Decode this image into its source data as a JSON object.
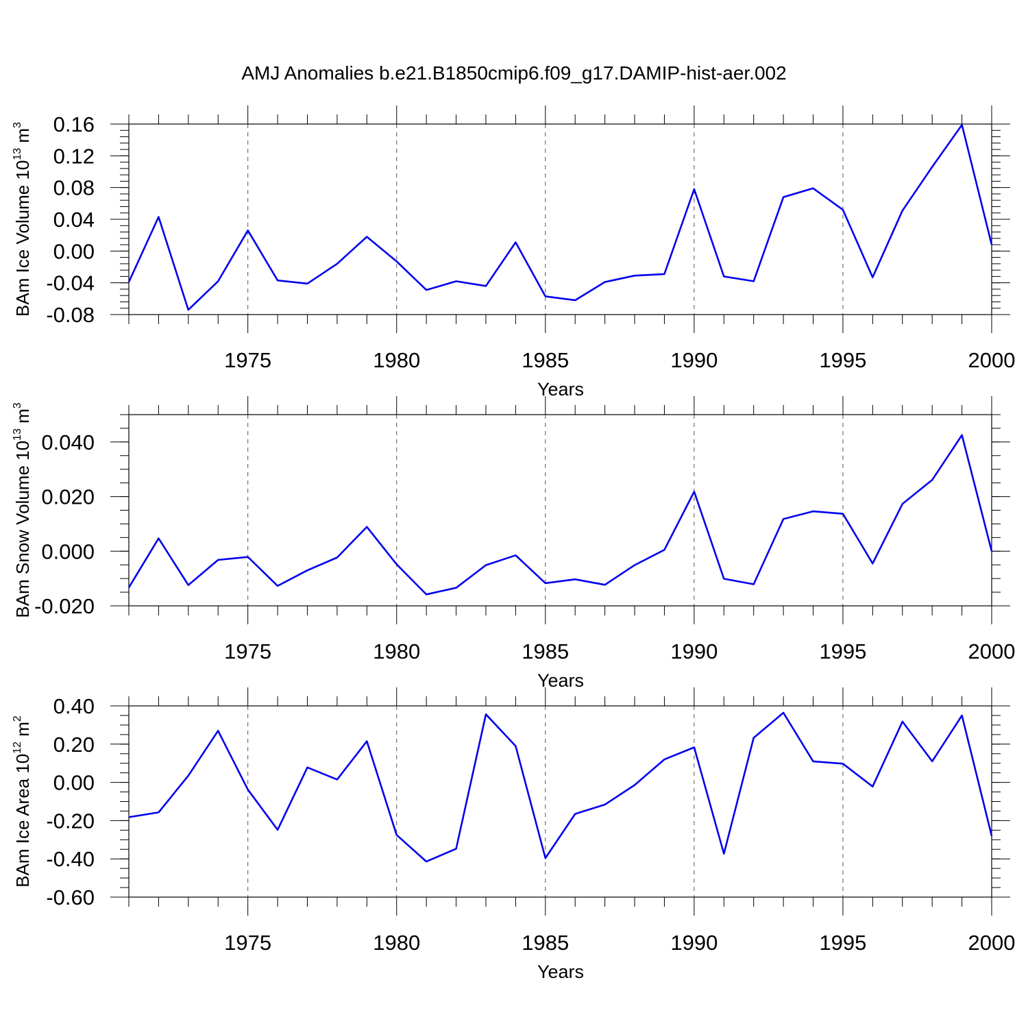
{
  "title": "AMJ Anomalies b.e21.B1850cmip6.f09_g17.DAMIP-hist-aer.002",
  "line_color": "#0000ee",
  "chart_data": [
    {
      "type": "line",
      "ylabel": "BAm Ice Volume 10",
      "ylabel_sup": "13",
      "ylabel_unit": "m",
      "ylabel_unit_sup": "3",
      "xlabel": "Years",
      "xlim": [
        1971,
        2000
      ],
      "ylim": [
        -0.08,
        0.16
      ],
      "yticks": [
        -0.08,
        -0.04,
        0.0,
        0.04,
        0.08,
        0.12,
        0.16
      ],
      "ytick_labels": [
        "-0.08",
        "-0.04",
        "0.00",
        "0.04",
        "0.08",
        "0.12",
        "0.16"
      ],
      "yminor_step": 0.008,
      "xticks": [
        1975,
        1980,
        1985,
        1990,
        1995,
        2000
      ],
      "xtick_labels": [
        "1975",
        "1980",
        "1985",
        "1990",
        "1995",
        "2000"
      ],
      "x": [
        1971,
        1972,
        1973,
        1974,
        1975,
        1976,
        1977,
        1978,
        1979,
        1980,
        1981,
        1982,
        1983,
        1984,
        1985,
        1986,
        1987,
        1988,
        1989,
        1990,
        1991,
        1992,
        1993,
        1994,
        1995,
        1996,
        1997,
        1998,
        1999,
        2000
      ],
      "values": [
        -0.039,
        0.043,
        -0.074,
        -0.038,
        0.026,
        -0.037,
        -0.041,
        -0.016,
        0.018,
        -0.013,
        -0.049,
        -0.038,
        -0.044,
        0.011,
        -0.057,
        -0.062,
        -0.039,
        -0.031,
        -0.029,
        0.078,
        -0.032,
        -0.038,
        0.068,
        0.079,
        0.052,
        -0.033,
        0.051,
        0.106,
        0.159,
        0.008
      ]
    },
    {
      "type": "line",
      "ylabel": "BAm Snow Volume 10",
      "ylabel_sup": "13",
      "ylabel_unit": "m",
      "ylabel_unit_sup": "3",
      "xlabel": "Years",
      "xlim": [
        1971,
        2000
      ],
      "ylim": [
        -0.02,
        0.05
      ],
      "yticks": [
        -0.02,
        0.0,
        0.02,
        0.04
      ],
      "ytick_labels": [
        "-0.020",
        "0.000",
        "0.020",
        "0.040"
      ],
      "yminor_step": 0.005,
      "xticks": [
        1975,
        1980,
        1985,
        1990,
        1995,
        2000
      ],
      "xtick_labels": [
        "1975",
        "1980",
        "1985",
        "1990",
        "1995",
        "2000"
      ],
      "x": [
        1971,
        1972,
        1973,
        1974,
        1975,
        1976,
        1977,
        1978,
        1979,
        1980,
        1981,
        1982,
        1983,
        1984,
        1985,
        1986,
        1987,
        1988,
        1989,
        1990,
        1991,
        1992,
        1993,
        1994,
        1995,
        1996,
        1997,
        1998,
        1999,
        2000
      ],
      "values": [
        -0.0133,
        0.0047,
        -0.0124,
        -0.0032,
        -0.0021,
        -0.0127,
        -0.007,
        -0.0023,
        0.0089,
        -0.0048,
        -0.0158,
        -0.0134,
        -0.0051,
        -0.0015,
        -0.0117,
        -0.0103,
        -0.0123,
        -0.0051,
        0.0005,
        0.0218,
        -0.0101,
        -0.0121,
        0.0118,
        0.0146,
        0.0137,
        -0.0045,
        0.0173,
        0.0261,
        0.0425,
        0.0
      ]
    },
    {
      "type": "line",
      "ylabel": "BAm Ice Area 10",
      "ylabel_sup": "12",
      "ylabel_unit": "m",
      "ylabel_unit_sup": "2",
      "xlabel": "Years",
      "xlim": [
        1971,
        2000
      ],
      "ylim": [
        -0.6,
        0.4
      ],
      "yticks": [
        -0.6,
        -0.4,
        -0.2,
        0.0,
        0.2,
        0.4
      ],
      "ytick_labels": [
        "-0.60",
        "-0.40",
        "-0.20",
        "0.00",
        "0.20",
        "0.40"
      ],
      "yminor_step": 0.05,
      "xticks": [
        1975,
        1980,
        1985,
        1990,
        1995,
        2000
      ],
      "xtick_labels": [
        "1975",
        "1980",
        "1985",
        "1990",
        "1995",
        "2000"
      ],
      "x": [
        1971,
        1972,
        1973,
        1974,
        1975,
        1976,
        1977,
        1978,
        1979,
        1980,
        1981,
        1982,
        1983,
        1984,
        1985,
        1986,
        1987,
        1988,
        1989,
        1990,
        1991,
        1992,
        1993,
        1994,
        1995,
        1996,
        1997,
        1998,
        1999,
        2000
      ],
      "values": [
        -0.182,
        -0.157,
        0.035,
        0.27,
        -0.038,
        -0.248,
        0.078,
        0.015,
        0.215,
        -0.275,
        -0.414,
        -0.347,
        0.356,
        0.19,
        -0.396,
        -0.165,
        -0.116,
        -0.014,
        0.12,
        0.183,
        -0.373,
        0.233,
        0.364,
        0.11,
        0.098,
        -0.022,
        0.318,
        0.11,
        0.35,
        -0.28
      ]
    }
  ]
}
